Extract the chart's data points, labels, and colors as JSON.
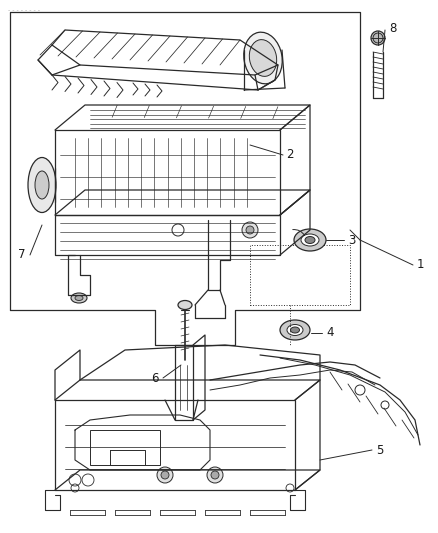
{
  "bg_color": "#ffffff",
  "line_color": "#2a2a2a",
  "label_color": "#1a1a1a",
  "figsize": [
    4.38,
    5.33
  ],
  "dpi": 100
}
